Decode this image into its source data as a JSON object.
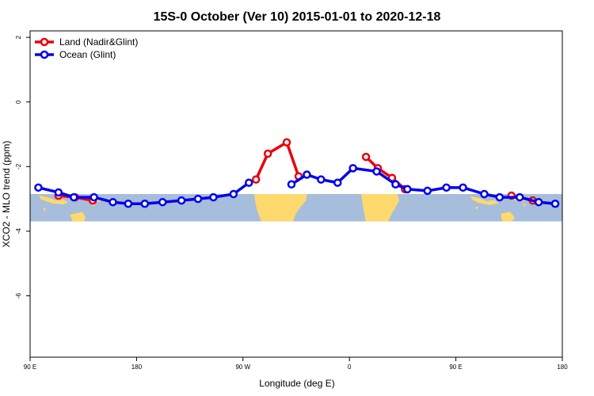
{
  "chart_data": {
    "type": "line",
    "title": "15S-0 October (Ver 10)   2015-01-01 to 2020-12-18",
    "xlabel": "Longitude (deg E)",
    "ylabel": "XCO2 - MLO trend (ppm)",
    "x_ticks": [
      {
        "value": 90,
        "label": "90 E"
      },
      {
        "value": 180,
        "label": "180"
      },
      {
        "value": 270,
        "label": "90 W"
      },
      {
        "value": 360,
        "label": "0"
      },
      {
        "value": 450,
        "label": "90 E"
      },
      {
        "value": 540,
        "label": "180"
      }
    ],
    "y_ticks": [
      2,
      0,
      -2,
      -4,
      -6
    ],
    "xlim": [
      90,
      540
    ],
    "ylim": [
      -7.9,
      2.2
    ],
    "map_band": {
      "ymin": -3.7,
      "ymax": -2.85,
      "ocean_color": "#a6bddb",
      "land_color": "#fdd96e"
    },
    "legend": {
      "position": "top-left"
    },
    "series": [
      {
        "name": "Land (Nadir&Glint)",
        "color": "#e8000b",
        "segments": [
          [
            [
              114,
              -2.9
            ],
            [
              128,
              -2.95
            ],
            [
              143,
              -3.05
            ]
          ],
          [
            [
              281,
              -2.4
            ],
            [
              291,
              -1.6
            ],
            [
              307,
              -1.25
            ],
            [
              317,
              -2.3
            ]
          ],
          [
            [
              374,
              -1.7
            ],
            [
              384,
              -2.05
            ],
            [
              396,
              -2.35
            ],
            [
              407,
              -2.7
            ]
          ],
          [
            [
              497,
              -2.9
            ],
            [
              515,
              -3.05
            ]
          ]
        ]
      },
      {
        "name": "Ocean (Glint)",
        "color": "#0000ee",
        "segments": [
          [
            [
              97,
              -2.65
            ],
            [
              114,
              -2.8
            ],
            [
              127,
              -2.95
            ],
            [
              144,
              -2.95
            ],
            [
              160,
              -3.1
            ],
            [
              173,
              -3.15
            ],
            [
              187,
              -3.15
            ],
            [
              202,
              -3.1
            ],
            [
              218,
              -3.05
            ],
            [
              232,
              -3.0
            ],
            [
              245,
              -2.95
            ],
            [
              262,
              -2.85
            ],
            [
              275,
              -2.5
            ]
          ],
          [
            [
              311,
              -2.55
            ],
            [
              324,
              -2.25
            ],
            [
              336,
              -2.4
            ],
            [
              350,
              -2.5
            ],
            [
              363,
              -2.05
            ],
            [
              383,
              -2.15
            ],
            [
              399,
              -2.55
            ],
            [
              409,
              -2.7
            ],
            [
              426,
              -2.75
            ],
            [
              442,
              -2.65
            ],
            [
              456,
              -2.65
            ],
            [
              474,
              -2.85
            ],
            [
              487,
              -2.95
            ],
            [
              504,
              -2.95
            ],
            [
              520,
              -3.1
            ],
            [
              534,
              -3.15
            ]
          ]
        ]
      }
    ]
  }
}
